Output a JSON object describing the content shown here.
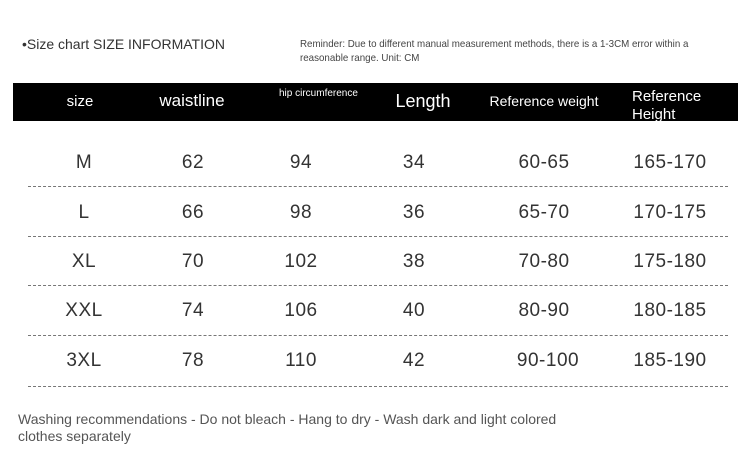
{
  "title": "•Size chart SIZE INFORMATION",
  "reminder": "Reminder: Due to different manual measurement methods, there is a 1-3CM error within a reasonable range. Unit: CM",
  "headers": [
    "size",
    "waistline",
    "hip circumference",
    "Length",
    "Reference weight",
    "Reference Height"
  ],
  "rows": [
    [
      "M",
      "62",
      "94",
      "34",
      "60-65",
      "165-170"
    ],
    [
      "L",
      "66",
      "98",
      "36",
      "65-70",
      "170-175"
    ],
    [
      "XL",
      "70",
      "102",
      "38",
      "70-80",
      "175-180"
    ],
    [
      "XXL",
      "74",
      "106",
      "40",
      "80-90",
      "180-185"
    ],
    [
      "3XL",
      "78",
      "110",
      "42",
      "90-100",
      "185-190"
    ]
  ],
  "washing": "Washing recommendations - Do not bleach - Hang to dry - Wash dark and light colored clothes separately"
}
